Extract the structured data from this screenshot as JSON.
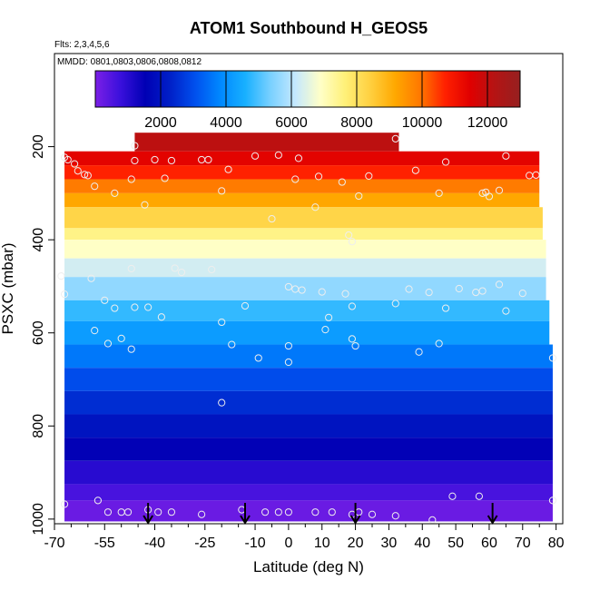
{
  "chart_data": {
    "type": "heatmap",
    "title": "ATOM1 Southbound H_GEOS5",
    "annotations": [
      "Flts: 2,3,4,5,6",
      "MMDD: 0801,0803,0806,0808,0812"
    ],
    "xlabel": "Latitude (deg N)",
    "ylabel": "PSXC (mbar)",
    "xlim": [
      -70,
      82
    ],
    "ylim": [
      1010,
      0
    ],
    "x_ticks": [
      -70,
      -55,
      -40,
      -25,
      -10,
      0,
      10,
      20,
      30,
      40,
      50,
      60,
      70,
      80
    ],
    "x_tick_labels": [
      "-70",
      "-55",
      "-40",
      "-25",
      "-10",
      "0",
      "10",
      "20",
      "30",
      "40",
      "50",
      "60",
      "70",
      "80"
    ],
    "x_minor_ticks": [
      -65,
      -60,
      -50,
      -45,
      -35,
      -30,
      -20,
      -15,
      -5,
      5,
      15,
      25,
      35,
      45,
      55,
      65,
      75
    ],
    "y_ticks": [
      200,
      400,
      600,
      800,
      1000
    ],
    "y_tick_labels": [
      "200",
      "400",
      "600",
      "800",
      "1000"
    ],
    "colorbar": {
      "min": 0,
      "max": 13000,
      "ticks": [
        2000,
        4000,
        6000,
        8000,
        10000,
        12000
      ],
      "tick_labels": [
        "2000",
        "4000",
        "6000",
        "8000",
        "10000",
        "12000"
      ],
      "colors": [
        "#7b1fe6",
        "#3a10dc",
        "#0000b4",
        "#0020c8",
        "#0050ee",
        "#0088ff",
        "#18b0ff",
        "#78d0ff",
        "#c4e8ff",
        "#ffffc8",
        "#fff078",
        "#ffd040",
        "#ffa800",
        "#ff7800",
        "#ff2000",
        "#e00000",
        "#b41414",
        "#962020"
      ]
    },
    "layers": [
      {
        "p_top": 170,
        "p_bot": 210,
        "x_start": -46,
        "x_end": 33,
        "height_m": 12100
      },
      {
        "p_top": 210,
        "p_bot": 240,
        "x_start": -67,
        "x_end": 75,
        "height_m": 11400
      },
      {
        "p_top": 240,
        "p_bot": 270,
        "x_start": -67,
        "x_end": 75,
        "height_m": 10700
      },
      {
        "p_top": 270,
        "p_bot": 300,
        "x_start": -67,
        "x_end": 75,
        "height_m": 9900
      },
      {
        "p_top": 300,
        "p_bot": 330,
        "x_start": -67,
        "x_end": 75,
        "height_m": 9200
      },
      {
        "p_top": 330,
        "p_bot": 375,
        "x_start": -67,
        "x_end": 76,
        "height_m": 8300
      },
      {
        "p_top": 375,
        "p_bot": 400,
        "x_start": -67,
        "x_end": 76,
        "height_m": 7500
      },
      {
        "p_top": 400,
        "p_bot": 440,
        "x_start": -67,
        "x_end": 77,
        "height_m": 6900
      },
      {
        "p_top": 440,
        "p_bot": 480,
        "x_start": -67,
        "x_end": 77,
        "height_m": 6300
      },
      {
        "p_top": 480,
        "p_bot": 530,
        "x_start": -67,
        "x_end": 77,
        "height_m": 5600
      },
      {
        "p_top": 530,
        "p_bot": 575,
        "x_start": -67,
        "x_end": 78,
        "height_m": 4800
      },
      {
        "p_top": 575,
        "p_bot": 625,
        "x_start": -67,
        "x_end": 78,
        "height_m": 4200
      },
      {
        "p_top": 625,
        "p_bot": 675,
        "x_start": -67,
        "x_end": 79,
        "height_m": 3600
      },
      {
        "p_top": 675,
        "p_bot": 725,
        "x_start": -67,
        "x_end": 79,
        "height_m": 3000
      },
      {
        "p_top": 725,
        "p_bot": 775,
        "x_start": -67,
        "x_end": 79,
        "height_m": 2500
      },
      {
        "p_top": 775,
        "p_bot": 825,
        "x_start": -67,
        "x_end": 79,
        "height_m": 2000
      },
      {
        "p_top": 825,
        "p_bot": 875,
        "x_start": -67,
        "x_end": 79,
        "height_m": 1500
      },
      {
        "p_top": 875,
        "p_bot": 925,
        "x_start": -67,
        "x_end": 79,
        "height_m": 1000
      },
      {
        "p_top": 925,
        "p_bot": 960,
        "x_start": -67,
        "x_end": 79,
        "height_m": 600
      },
      {
        "p_top": 960,
        "p_bot": 1005,
        "x_start": -67,
        "x_end": 79,
        "height_m": 200
      }
    ],
    "sample_points": [
      [
        -46,
        198
      ],
      [
        32,
        183
      ],
      [
        -67,
        223
      ],
      [
        -66,
        228
      ],
      [
        -64,
        237
      ],
      [
        -63,
        252
      ],
      [
        -61,
        260
      ],
      [
        -60,
        262
      ],
      [
        -46,
        230
      ],
      [
        -40,
        228
      ],
      [
        -35,
        230
      ],
      [
        -26,
        228
      ],
      [
        -24,
        228
      ],
      [
        -18,
        249
      ],
      [
        -10,
        220
      ],
      [
        -3,
        218
      ],
      [
        3,
        225
      ],
      [
        38,
        251
      ],
      [
        47,
        233
      ],
      [
        65,
        220
      ],
      [
        -58,
        285
      ],
      [
        -52,
        300
      ],
      [
        -47,
        270
      ],
      [
        -37,
        268
      ],
      [
        2,
        270
      ],
      [
        9,
        264
      ],
      [
        16,
        276
      ],
      [
        21,
        306
      ],
      [
        24,
        263
      ],
      [
        45,
        300
      ],
      [
        58,
        300
      ],
      [
        59,
        298
      ],
      [
        60,
        307
      ],
      [
        63,
        294
      ],
      [
        72,
        262
      ],
      [
        74,
        261
      ],
      [
        -43,
        325
      ],
      [
        -20,
        295
      ],
      [
        -5,
        355
      ],
      [
        8,
        330
      ],
      [
        18,
        390
      ],
      [
        19,
        404
      ],
      [
        -68,
        478
      ],
      [
        -67,
        517
      ],
      [
        -59,
        483
      ],
      [
        -55,
        530
      ],
      [
        -52,
        547
      ],
      [
        -47,
        462
      ],
      [
        -46,
        545
      ],
      [
        -42,
        545
      ],
      [
        -38,
        566
      ],
      [
        -34,
        461
      ],
      [
        -32,
        470
      ],
      [
        -23,
        464
      ],
      [
        -20,
        577
      ],
      [
        -13,
        542
      ],
      [
        0,
        501
      ],
      [
        2,
        506
      ],
      [
        4,
        508
      ],
      [
        10,
        512
      ],
      [
        12,
        567
      ],
      [
        17,
        516
      ],
      [
        19,
        543
      ],
      [
        32,
        537
      ],
      [
        36,
        506
      ],
      [
        42,
        513
      ],
      [
        47,
        547
      ],
      [
        51,
        505
      ],
      [
        56,
        513
      ],
      [
        58,
        510
      ],
      [
        63,
        496
      ],
      [
        65,
        553
      ],
      [
        70,
        515
      ],
      [
        -58,
        595
      ],
      [
        -54,
        623
      ],
      [
        -50,
        612
      ],
      [
        -47,
        635
      ],
      [
        -17,
        625
      ],
      [
        -9,
        654
      ],
      [
        0,
        628
      ],
      [
        0,
        663
      ],
      [
        11,
        593
      ],
      [
        19,
        613
      ],
      [
        20,
        628
      ],
      [
        39,
        641
      ],
      [
        45,
        623
      ],
      [
        -20,
        750
      ],
      [
        79,
        654
      ],
      [
        -67,
        968
      ],
      [
        -57,
        960
      ],
      [
        -54,
        985
      ],
      [
        -50,
        985
      ],
      [
        -48,
        985
      ],
      [
        -42,
        980
      ],
      [
        -39,
        985
      ],
      [
        -35,
        985
      ],
      [
        -26,
        990
      ],
      [
        -14,
        980
      ],
      [
        -7,
        985
      ],
      [
        -3,
        985
      ],
      [
        0,
        985
      ],
      [
        8,
        985
      ],
      [
        13,
        985
      ],
      [
        19,
        990
      ],
      [
        21,
        985
      ],
      [
        25,
        990
      ],
      [
        32,
        993
      ],
      [
        43,
        1002
      ],
      [
        49,
        951
      ],
      [
        57,
        951
      ],
      [
        79,
        960
      ]
    ],
    "arrows_x": [
      -42,
      -13,
      20,
      61
    ]
  }
}
